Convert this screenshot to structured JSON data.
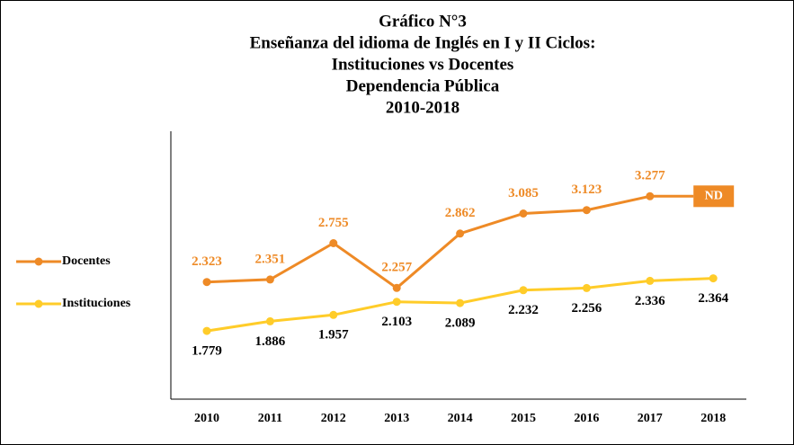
{
  "chart_data": {
    "type": "line",
    "title": [
      "Gráfico N°3",
      "Enseñanza del idioma de Inglés en I y II Ciclos:",
      "Instituciones vs Docentes",
      "Dependencia Pública",
      "2010-2018"
    ],
    "categories": [
      "2010",
      "2011",
      "2012",
      "2013",
      "2014",
      "2015",
      "2016",
      "2017",
      "2018"
    ],
    "series": [
      {
        "name": "Docentes",
        "color": "#ee8a26",
        "values": [
          2323,
          2351,
          2755,
          2257,
          2862,
          3085,
          3123,
          3277,
          null
        ],
        "value_labels": [
          "2.323",
          "2.351",
          "2.755",
          "2.257",
          "2.862",
          "3.085",
          "3.123",
          "3.277",
          "ND"
        ]
      },
      {
        "name": "Instituciones",
        "color": "#ffcc29",
        "values": [
          1779,
          1886,
          1957,
          2103,
          2089,
          2232,
          2256,
          2336,
          2364
        ],
        "value_labels": [
          "1.779",
          "1.886",
          "1.957",
          "2.103",
          "2.089",
          "2.232",
          "2.256",
          "2.336",
          "2.364"
        ]
      }
    ],
    "ylim": [
      1000,
      4000
    ]
  }
}
